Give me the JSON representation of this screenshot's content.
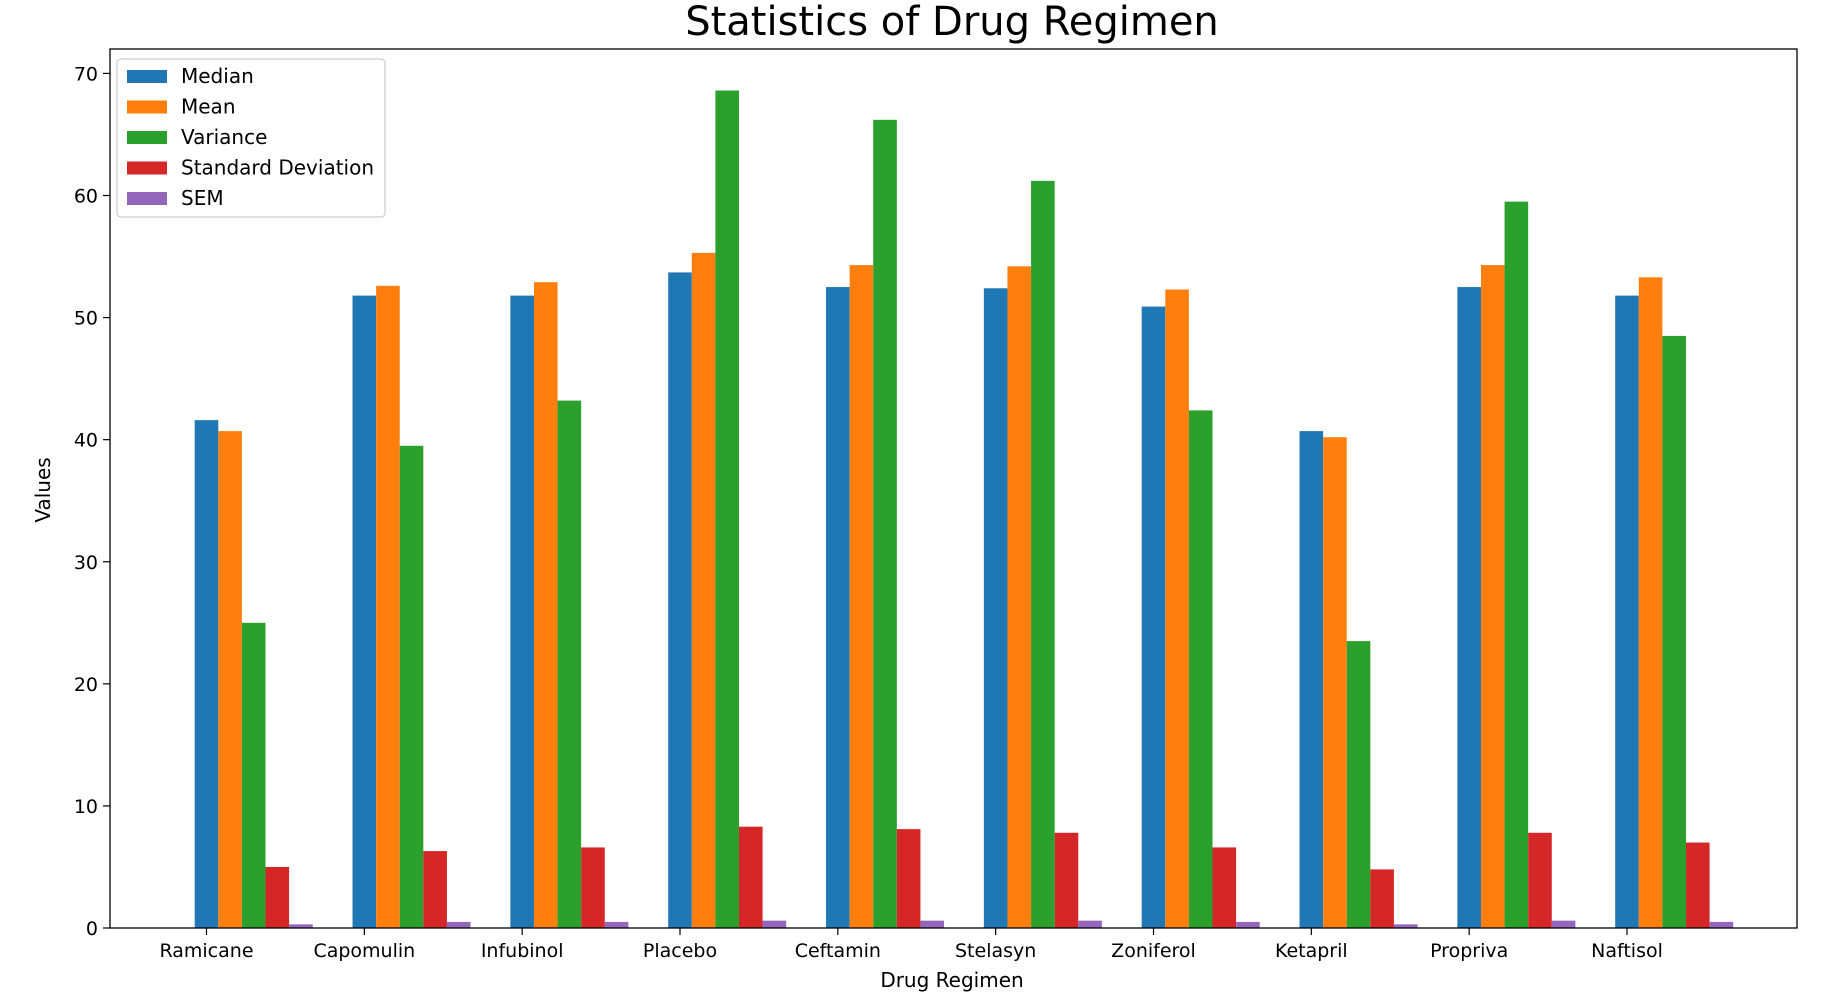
{
  "chart_data": {
    "type": "bar",
    "title": "Statistics of Drug Regimen",
    "xlabel": "Drug Regimen",
    "ylabel": "Values",
    "ylim": [
      0,
      72
    ],
    "yticks": [
      0,
      10,
      20,
      30,
      40,
      50,
      60,
      70
    ],
    "grid": false,
    "legend": "top-left",
    "categories": [
      "Ramicane",
      "Capomulin",
      "Infubinol",
      "Placebo",
      "Ceftamin",
      "Stelasyn",
      "Zoniferol",
      "Ketapril",
      "Propriva",
      "Naftisol"
    ],
    "series": [
      {
        "name": "Median",
        "color": "#1f77b4",
        "values": [
          41.6,
          51.8,
          51.8,
          53.7,
          52.5,
          52.4,
          50.9,
          40.7,
          52.5,
          51.8
        ]
      },
      {
        "name": "Mean",
        "color": "#ff7f0e",
        "values": [
          40.7,
          52.6,
          52.9,
          55.3,
          54.3,
          54.2,
          52.3,
          40.2,
          54.3,
          53.3
        ]
      },
      {
        "name": "Variance",
        "color": "#2ca02c",
        "values": [
          25.0,
          39.5,
          43.2,
          68.6,
          66.2,
          61.2,
          42.4,
          23.5,
          59.5,
          48.5
        ]
      },
      {
        "name": "Standard Deviation",
        "color": "#d62728",
        "values": [
          5.0,
          6.3,
          6.6,
          8.3,
          8.1,
          7.8,
          6.6,
          4.8,
          7.8,
          7.0
        ]
      },
      {
        "name": "SEM",
        "color": "#9467bd",
        "values": [
          0.3,
          0.5,
          0.5,
          0.6,
          0.6,
          0.6,
          0.5,
          0.3,
          0.6,
          0.5
        ]
      }
    ]
  }
}
